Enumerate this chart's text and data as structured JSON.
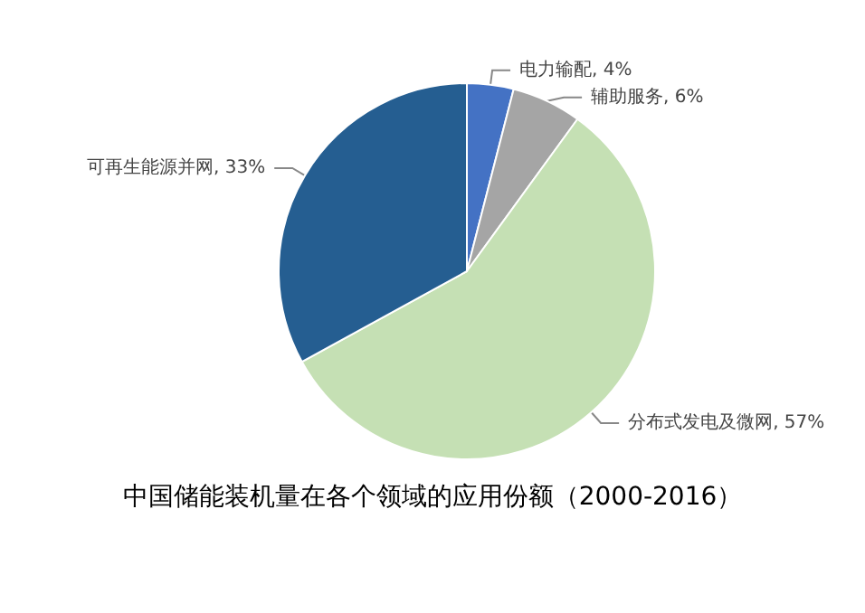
{
  "chart_data": {
    "type": "pie",
    "title": "中国储能装机量在各个领域的应用份额（2000-2016）",
    "categories": [
      "电力输配",
      "辅助服务",
      "分布式发电及微网",
      "可再生能源并网"
    ],
    "values": [
      4,
      6,
      57,
      33
    ],
    "value_labels": [
      "4%",
      "6%",
      "57%",
      "33%"
    ],
    "colors": [
      "#4472c4",
      "#a5a5a5",
      "#c5e0b4",
      "#255e91"
    ],
    "legend": false
  }
}
